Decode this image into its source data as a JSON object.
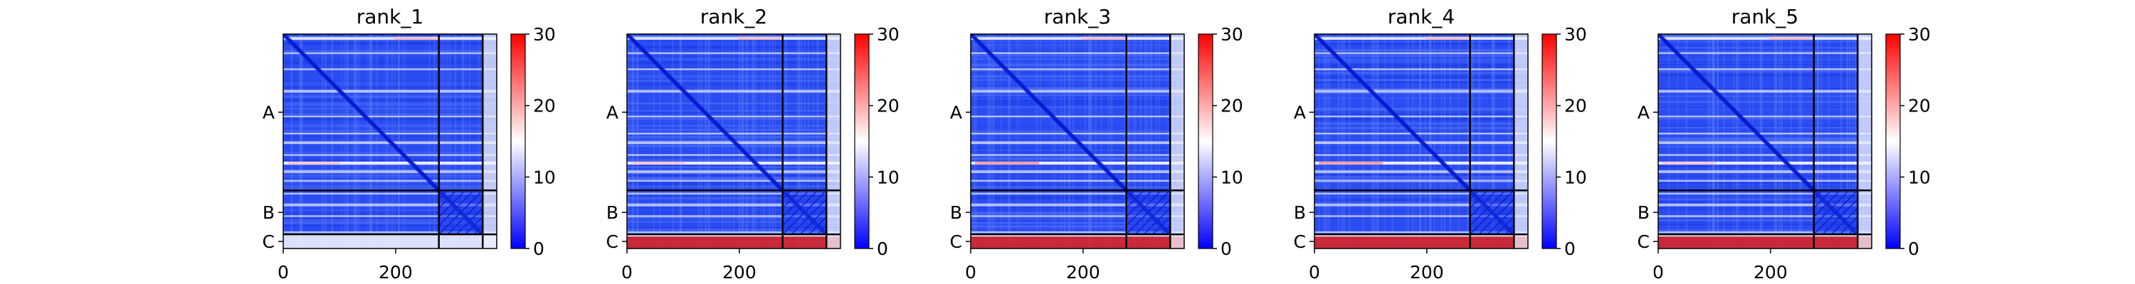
{
  "figure": {
    "type": "heatmap",
    "colormap": [
      "#0000ff",
      "#ffffff",
      "#ff0000"
    ]
  },
  "chart_data": [
    {
      "type": "heatmap",
      "title": "rank_1",
      "x_ticks": [
        0,
        200
      ],
      "y_ticks": [
        "A",
        "B",
        "C"
      ],
      "chain_boundaries": [
        277,
        355
      ],
      "total_length": 380,
      "colorbar": {
        "min": 0,
        "max": 30,
        "ticks": [
          0,
          10,
          20,
          30
        ]
      },
      "c_row_high": false,
      "a_row_bright": false
    },
    {
      "type": "heatmap",
      "title": "rank_2",
      "x_ticks": [
        0,
        200
      ],
      "y_ticks": [
        "A",
        "B",
        "C"
      ],
      "chain_boundaries": [
        277,
        355
      ],
      "total_length": 380,
      "colorbar": {
        "min": 0,
        "max": 30,
        "ticks": [
          0,
          10,
          20,
          30
        ]
      },
      "c_row_high": true,
      "a_row_bright": false
    },
    {
      "type": "heatmap",
      "title": "rank_3",
      "x_ticks": [
        0,
        200
      ],
      "y_ticks": [
        "A",
        "B",
        "C"
      ],
      "chain_boundaries": [
        277,
        355
      ],
      "total_length": 380,
      "colorbar": {
        "min": 0,
        "max": 30,
        "ticks": [
          0,
          10,
          20,
          30
        ]
      },
      "c_row_high": true,
      "a_row_bright": true
    },
    {
      "type": "heatmap",
      "title": "rank_4",
      "x_ticks": [
        0,
        200
      ],
      "y_ticks": [
        "A",
        "B",
        "C"
      ],
      "chain_boundaries": [
        277,
        355
      ],
      "total_length": 380,
      "colorbar": {
        "min": 0,
        "max": 30,
        "ticks": [
          0,
          10,
          20,
          30
        ]
      },
      "c_row_high": true,
      "a_row_bright": true
    },
    {
      "type": "heatmap",
      "title": "rank_5",
      "x_ticks": [
        0,
        200
      ],
      "y_ticks": [
        "A",
        "B",
        "C"
      ],
      "chain_boundaries": [
        277,
        355
      ],
      "total_length": 380,
      "colorbar": {
        "min": 0,
        "max": 30,
        "ticks": [
          0,
          10,
          20,
          30
        ]
      },
      "c_row_high": true,
      "a_row_bright": false
    }
  ]
}
